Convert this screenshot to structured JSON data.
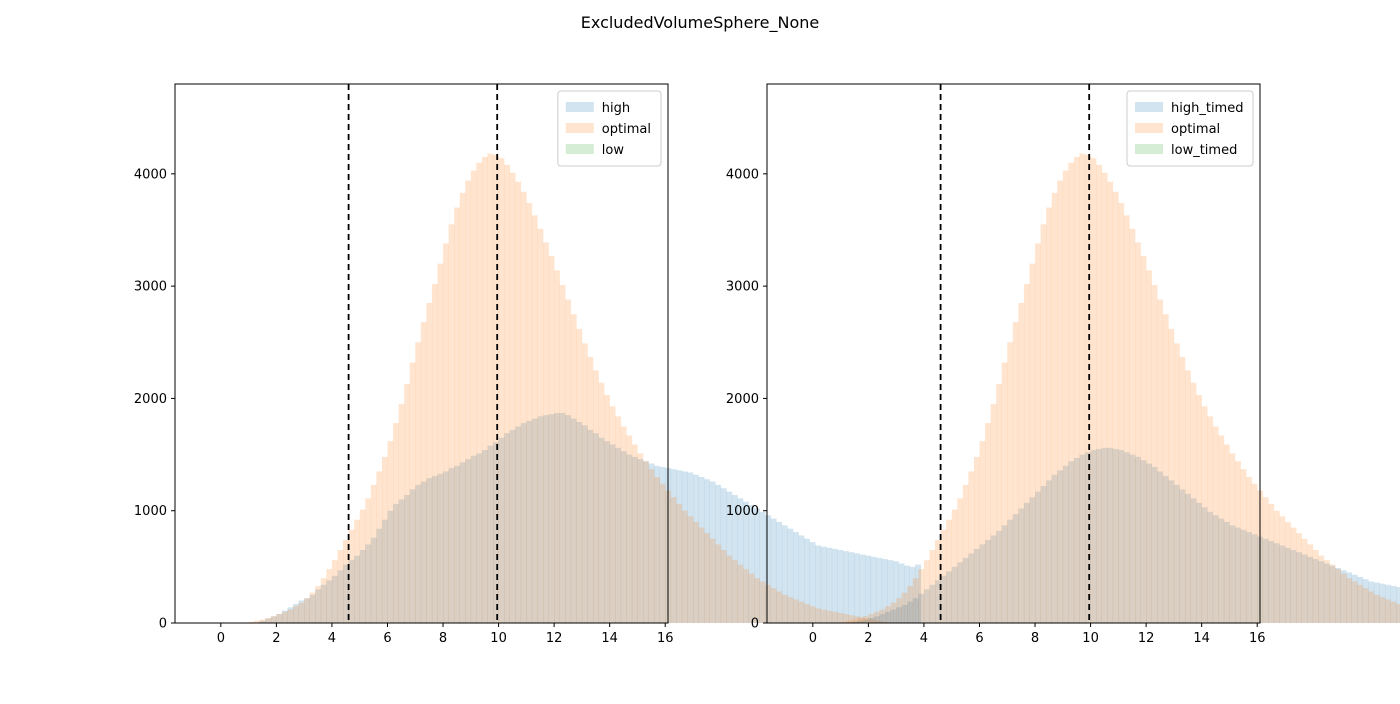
{
  "title": "ExcludedVolumeSphere_None",
  "colors": {
    "blue": "#1f77b4",
    "orange": "#ff7f0e",
    "green": "#2ca02c",
    "bar_alpha": 0.2,
    "vline": "#000000"
  },
  "chart_data": [
    {
      "type": "bar",
      "subtype": "histogram-overlay",
      "xlim": [
        -1.65,
        16.1
      ],
      "ylim": [
        0,
        4800
      ],
      "x_ticks": [
        0,
        2,
        4,
        6,
        8,
        10,
        12,
        14,
        16
      ],
      "y_ticks": [
        0,
        1000,
        2000,
        3000,
        4000
      ],
      "vlines": [
        4.6,
        9.95
      ],
      "legend_position": "top-right",
      "grid": false,
      "bin_start": 0.0,
      "bin_width": 0.2,
      "series": [
        {
          "name": "high",
          "color": "#1f77b4",
          "values": [
            0,
            0,
            0,
            0,
            0,
            0,
            0,
            20,
            40,
            60,
            80,
            110,
            140,
            170,
            200,
            220,
            250,
            300,
            340,
            380,
            420,
            470,
            520,
            560,
            600,
            650,
            700,
            760,
            840,
            920,
            1000,
            1060,
            1100,
            1140,
            1190,
            1230,
            1260,
            1290,
            1310,
            1330,
            1350,
            1380,
            1400,
            1430,
            1460,
            1490,
            1510,
            1540,
            1580,
            1610,
            1650,
            1690,
            1720,
            1750,
            1780,
            1800,
            1820,
            1840,
            1850,
            1860,
            1870,
            1870,
            1850,
            1820,
            1790,
            1760,
            1720,
            1690,
            1650,
            1620,
            1590,
            1560,
            1530,
            1500,
            1480,
            1460,
            1440,
            1420,
            1400,
            1390,
            1380,
            1370,
            1360,
            1350,
            1340,
            1320,
            1300,
            1280,
            1260,
            1230,
            1200,
            1170,
            1140,
            1110,
            1080,
            1050,
            1020,
            990,
            960,
            930,
            900,
            870,
            840,
            810,
            780,
            750,
            720,
            690,
            680,
            670,
            660,
            650,
            640,
            630,
            620,
            610,
            600,
            590,
            580,
            570,
            560,
            550,
            530,
            510,
            500,
            520
          ]
        },
        {
          "name": "optimal",
          "color": "#ff7f0e",
          "values": [
            0,
            0,
            0,
            0,
            5,
            10,
            20,
            30,
            45,
            60,
            80,
            100,
            120,
            150,
            180,
            220,
            270,
            330,
            400,
            480,
            560,
            650,
            740,
            830,
            920,
            1010,
            1110,
            1230,
            1350,
            1480,
            1620,
            1780,
            1950,
            2130,
            2320,
            2500,
            2680,
            2850,
            3020,
            3200,
            3380,
            3550,
            3700,
            3830,
            3940,
            4030,
            4100,
            4150,
            4180,
            4170,
            4140,
            4080,
            4010,
            3930,
            3840,
            3740,
            3630,
            3510,
            3390,
            3270,
            3140,
            3010,
            2880,
            2750,
            2620,
            2490,
            2370,
            2250,
            2140,
            2030,
            1930,
            1840,
            1750,
            1670,
            1590,
            1510,
            1440,
            1370,
            1300,
            1240,
            1180,
            1120,
            1060,
            1000,
            950,
            900,
            850,
            800,
            750,
            700,
            650,
            600,
            560,
            520,
            480,
            440,
            400,
            370,
            340,
            310,
            280,
            250,
            230,
            210,
            190,
            170,
            150,
            130,
            120,
            110,
            100,
            90,
            80,
            70,
            60,
            50,
            40,
            30,
            20,
            10,
            5,
            0,
            0,
            0,
            0,
            0,
            0,
            0
          ]
        },
        {
          "name": "low",
          "color": "#2ca02c",
          "values": []
        }
      ]
    },
    {
      "type": "bar",
      "subtype": "histogram-overlay",
      "xlim": [
        -1.65,
        16.1
      ],
      "ylim": [
        0,
        4800
      ],
      "x_ticks": [
        0,
        2,
        4,
        6,
        8,
        10,
        12,
        14,
        16
      ],
      "y_ticks": [
        0,
        1000,
        2000,
        3000,
        4000
      ],
      "vlines": [
        4.6,
        9.95
      ],
      "legend_position": "top-right",
      "grid": false,
      "bin_start": 0.0,
      "bin_width": 0.2,
      "series": [
        {
          "name": "high_timed",
          "color": "#1f77b4",
          "values": [
            0,
            0,
            0,
            0,
            0,
            0,
            0,
            10,
            20,
            30,
            45,
            60,
            80,
            100,
            120,
            140,
            160,
            190,
            220,
            260,
            300,
            340,
            380,
            420,
            460,
            500,
            540,
            580,
            620,
            660,
            700,
            740,
            780,
            820,
            870,
            920,
            970,
            1020,
            1070,
            1120,
            1170,
            1220,
            1270,
            1320,
            1360,
            1400,
            1440,
            1470,
            1500,
            1520,
            1540,
            1550,
            1560,
            1560,
            1550,
            1540,
            1520,
            1500,
            1480,
            1450,
            1420,
            1390,
            1350,
            1310,
            1270,
            1230,
            1190,
            1150,
            1110,
            1070,
            1030,
            990,
            960,
            930,
            900,
            870,
            850,
            830,
            810,
            790,
            770,
            750,
            730,
            710,
            690,
            670,
            650,
            630,
            610,
            590,
            570,
            550,
            530,
            510,
            490,
            470,
            450,
            430,
            410,
            390,
            370,
            360,
            350,
            340,
            330,
            320,
            310,
            300,
            290,
            280,
            270,
            260,
            250,
            240,
            230,
            220,
            210,
            200,
            190,
            180,
            170,
            160,
            150,
            140,
            130,
            160
          ]
        },
        {
          "name": "optimal",
          "color": "#ff7f0e",
          "values": [
            0,
            0,
            0,
            0,
            5,
            10,
            20,
            30,
            45,
            60,
            80,
            100,
            120,
            150,
            180,
            220,
            270,
            330,
            400,
            480,
            560,
            650,
            740,
            830,
            920,
            1010,
            1110,
            1230,
            1350,
            1480,
            1620,
            1780,
            1950,
            2130,
            2320,
            2500,
            2680,
            2850,
            3020,
            3200,
            3380,
            3550,
            3700,
            3830,
            3940,
            4030,
            4100,
            4150,
            4180,
            4170,
            4140,
            4080,
            4010,
            3930,
            3840,
            3740,
            3630,
            3510,
            3390,
            3270,
            3140,
            3010,
            2880,
            2750,
            2620,
            2490,
            2370,
            2250,
            2140,
            2030,
            1930,
            1840,
            1750,
            1670,
            1590,
            1510,
            1440,
            1370,
            1300,
            1240,
            1180,
            1120,
            1060,
            1000,
            950,
            900,
            850,
            800,
            750,
            700,
            650,
            600,
            560,
            520,
            480,
            440,
            400,
            370,
            340,
            310,
            280,
            250,
            230,
            210,
            190,
            170,
            150,
            130,
            120,
            110,
            100,
            90,
            80,
            70,
            60,
            50,
            40,
            30,
            20,
            10,
            5,
            0,
            0,
            0,
            0,
            0,
            0,
            0
          ]
        },
        {
          "name": "low_timed",
          "color": "#2ca02c",
          "values": []
        }
      ]
    }
  ]
}
